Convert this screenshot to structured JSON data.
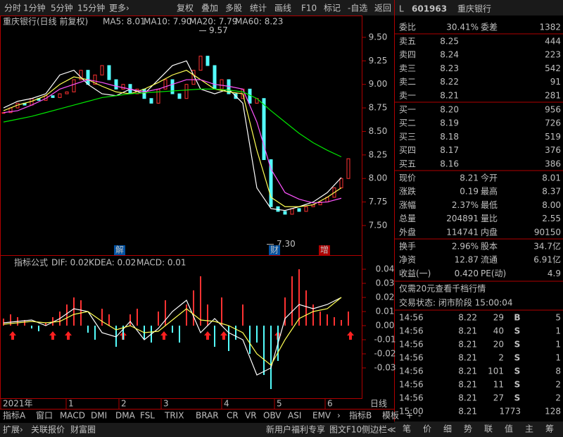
{
  "toolbar": [
    "分时",
    "1分钟",
    "5分钟",
    "15分钟",
    "更多›",
    "复权",
    "叠加",
    "多股",
    "统计",
    "画线",
    "F10",
    "标记",
    "-自选",
    "返回"
  ],
  "main_chart": {
    "type": "candlestick-close",
    "title": "重庆银行(日线 前复权)",
    "legend": [
      "MA5: 8.01",
      "MA10: 7.90",
      "MA20: 7.79",
      "MA60: 8.23"
    ],
    "ylim": [
      7.185,
      9.732
    ],
    "yticks": [
      {
        "value": 9.5,
        "label": "9.50"
      },
      {
        "value": 9.25,
        "label": "9.25"
      },
      {
        "value": 9.0,
        "label": "9.00"
      },
      {
        "value": 8.75,
        "label": "8.75"
      },
      {
        "value": 8.5,
        "label": "8.50"
      },
      {
        "value": 8.25,
        "label": "8.25"
      },
      {
        "value": 8.0,
        "label": "8.00"
      },
      {
        "value": 7.75,
        "label": "7.75"
      },
      {
        "value": 7.5,
        "label": "7.50"
      }
    ],
    "close": [
      8.7,
      8.75,
      8.8,
      8.78,
      8.85,
      8.83,
      8.88,
      8.86,
      8.9,
      8.92,
      9.05,
      9.15,
      9.0,
      9.1,
      9.2,
      9.05,
      8.95,
      9.0,
      8.9,
      8.95,
      8.85,
      8.8,
      8.95,
      9.05,
      8.9,
      8.85,
      9.0,
      9.15,
      9.3,
      9.2,
      8.95,
      9.05,
      8.9,
      8.85,
      8.95,
      8.8,
      8.85,
      8.2,
      7.7,
      7.65,
      7.62,
      7.68,
      7.65,
      7.7,
      7.72,
      7.75,
      7.8,
      7.9,
      8.0,
      8.21
    ],
    "series": [
      {
        "name": "MA5",
        "color": "#ffffff",
        "values": [
          8.75,
          8.82,
          8.85,
          8.9,
          9.1,
          9.15,
          9.0,
          8.9,
          8.88,
          8.95,
          8.9,
          9.05,
          9.2,
          9.25,
          8.95,
          8.9,
          8.95,
          8.8,
          7.9,
          7.68,
          7.66,
          7.7,
          7.75,
          7.85,
          8.01
        ]
      },
      {
        "name": "MA10",
        "color": "#ffff54",
        "values": [
          8.72,
          8.78,
          8.82,
          8.88,
          9.0,
          9.08,
          9.05,
          8.98,
          8.92,
          8.9,
          8.95,
          9.02,
          9.1,
          9.15,
          9.05,
          8.95,
          8.92,
          8.9,
          8.3,
          7.8,
          7.7,
          7.7,
          7.72,
          7.8,
          7.9
        ]
      },
      {
        "name": "MA20",
        "color": "#ff54ff",
        "values": [
          8.7,
          8.72,
          8.78,
          8.85,
          8.95,
          9.0,
          9.05,
          9.02,
          8.98,
          8.95,
          8.92,
          8.95,
          9.0,
          9.05,
          9.05,
          9.0,
          8.98,
          8.95,
          8.6,
          8.1,
          7.85,
          7.78,
          7.74,
          7.75,
          7.79
        ]
      },
      {
        "name": "MA60",
        "color": "#00e600",
        "values": [
          8.6,
          8.63,
          8.66,
          8.7,
          8.74,
          8.78,
          8.82,
          8.86,
          8.88,
          8.9,
          8.91,
          8.92,
          8.93,
          8.94,
          8.95,
          8.95,
          8.94,
          8.92,
          8.85,
          8.72,
          8.6,
          8.48,
          8.38,
          8.3,
          8.23
        ]
      }
    ],
    "annotations": [
      {
        "text": "9.57",
        "value": 9.57
      },
      {
        "text": "7.30",
        "value": 7.3
      }
    ],
    "events": [
      "解",
      "财",
      "增"
    ]
  },
  "indicator_chart": {
    "type": "macd",
    "title": "指标公式",
    "legend": [
      "DIF: 0.02",
      "KDEA: 0.02",
      "MACD: 0.01"
    ],
    "ylim": [
      -0.0515,
      0.0485
    ],
    "yticks": [
      0.04,
      0.03,
      0.02,
      0.01,
      {
        "value": 0,
        "label": "0.00"
      },
      -0.01,
      -0.02,
      -0.03
    ],
    "macd": [
      0.005,
      0.008,
      0.006,
      0.004,
      -0.002,
      -0.004,
      0.002,
      0.006,
      0.01,
      0.015,
      0.02,
      0.018,
      -0.005,
      -0.01,
      0.012,
      0.008,
      -0.015,
      -0.01,
      0.008,
      0.012,
      -0.01,
      -0.012,
      0.01,
      0.018,
      -0.005,
      -0.012,
      0.015,
      0.025,
      0.035,
      0.015,
      -0.015,
      0.02,
      -0.018,
      -0.01,
      0.015,
      -0.02,
      -0.012,
      -0.035,
      -0.045,
      -0.025,
      0.02,
      0.035,
      0.04,
      0.025,
      0.015,
      0.01,
      0.008,
      0.006,
      0.004,
      0.01
    ],
    "series": [
      {
        "name": "DIF",
        "color": "#ffffff",
        "values": [
          0.002,
          0.003,
          0.004,
          0.0,
          0.005,
          0.012,
          0.01,
          -0.005,
          -0.008,
          0.003,
          -0.01,
          -0.002,
          0.01,
          0.018,
          -0.005,
          0.005,
          -0.005,
          -0.01,
          -0.035,
          -0.03,
          0.005,
          0.015,
          0.012,
          0.015,
          0.02
        ]
      },
      {
        "name": "DEA",
        "color": "#ffff54",
        "values": [
          0.001,
          0.002,
          0.003,
          0.002,
          0.003,
          0.008,
          0.01,
          0.003,
          -0.003,
          0.0,
          -0.005,
          -0.004,
          0.004,
          0.012,
          0.004,
          0.003,
          0.0,
          -0.005,
          -0.02,
          -0.028,
          -0.01,
          0.005,
          0.01,
          0.012,
          0.02
        ]
      }
    ]
  },
  "time_axis": [
    "2021年",
    "1",
    "2",
    "3",
    "4",
    "5",
    "6"
  ],
  "bottom_tabs": [
    "指标A",
    "窗口",
    "MACD",
    "DMI",
    "DMA",
    "FSL",
    "TRIX",
    "BRAR",
    "CR",
    "VR",
    "OBV",
    "ASI",
    "EMV",
    "›",
    "指标B",
    "模板",
    "+",
    "-"
  ],
  "period": "日线",
  "status_bar": [
    "扩展›",
    "关联报价",
    "财富圈",
    "新用户福利专享",
    "图文F10",
    "侧边栏≪"
  ],
  "quote": {
    "flag": "L",
    "code": "601963",
    "name": "重庆银行",
    "ratio": [
      "委比",
      "30.41%",
      "委差",
      "1382"
    ],
    "asks": [
      [
        "卖五",
        "8.25",
        "444"
      ],
      [
        "卖四",
        "8.24",
        "223"
      ],
      [
        "卖三",
        "8.23",
        "542"
      ],
      [
        "卖二",
        "8.22",
        "91"
      ],
      [
        "卖一",
        "8.21",
        "281"
      ]
    ],
    "bids": [
      [
        "买一",
        "8.20",
        "956"
      ],
      [
        "买二",
        "8.19",
        "726"
      ],
      [
        "买三",
        "8.18",
        "519"
      ],
      [
        "买四",
        "8.17",
        "376"
      ],
      [
        "买五",
        "8.16",
        "386"
      ]
    ],
    "stats": [
      [
        "现价",
        "8.21",
        "今开",
        "8.01"
      ],
      [
        "涨跌",
        "0.19",
        "最高",
        "8.37"
      ],
      [
        "涨幅",
        "2.37%",
        "最低",
        "8.00"
      ],
      [
        "总量",
        "204891",
        "量比",
        "2.55"
      ],
      [
        "外盘",
        "114741",
        "内盘",
        "90150"
      ]
    ],
    "stats2": [
      [
        "换手",
        "2.96%",
        "股本",
        "34.7亿"
      ],
      [
        "净资",
        "12.87",
        "流通",
        "6.91亿"
      ],
      [
        "收益(一)",
        "0.420",
        "PE(动)",
        "4.9"
      ]
    ],
    "promo": "仅需20元查看千档行情",
    "status": "交易状态: 闭市阶段 15:00:04",
    "trades": [
      [
        "14:56",
        "8.22",
        "29",
        "B",
        "5"
      ],
      [
        "14:56",
        "8.21",
        "40",
        "S",
        "1"
      ],
      [
        "14:56",
        "8.21",
        "20",
        "S",
        "1"
      ],
      [
        "14:56",
        "8.21",
        "2",
        "S",
        "1"
      ],
      [
        "14:56",
        "8.21",
        "101",
        "S",
        "8"
      ],
      [
        "14:56",
        "8.21",
        "11",
        "S",
        "2"
      ],
      [
        "14:56",
        "8.21",
        "27",
        "S",
        "2"
      ],
      [
        "15:00",
        "8.21",
        "1773",
        "128"
      ]
    ],
    "tabs": [
      "笔",
      "价",
      "细",
      "势",
      "联",
      "值",
      "主",
      "筹"
    ]
  }
}
